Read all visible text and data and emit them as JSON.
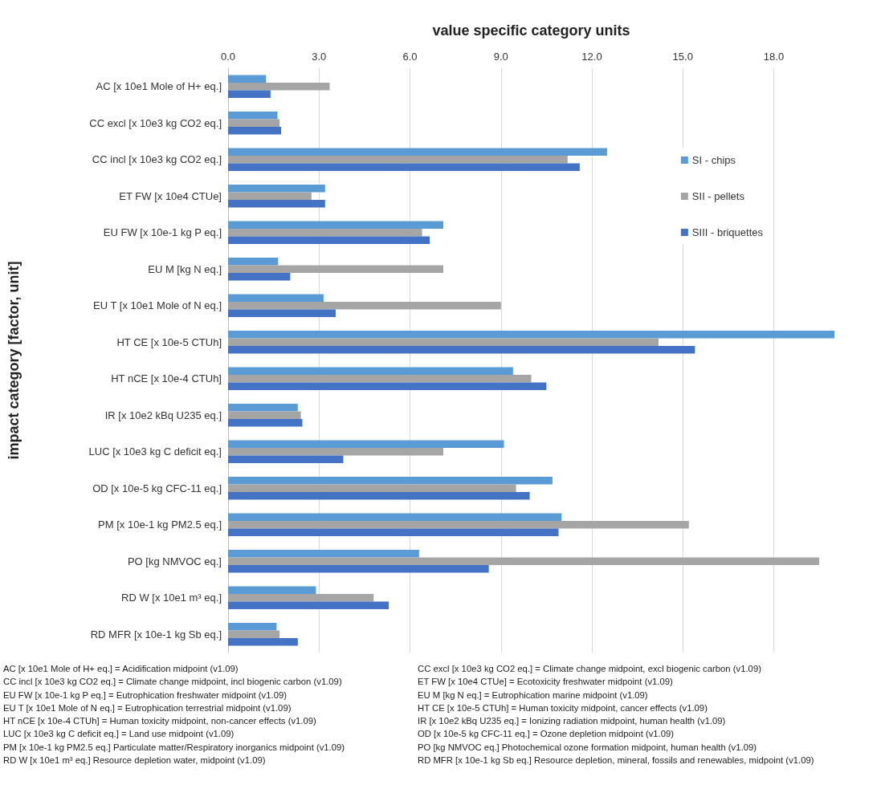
{
  "chart_data": {
    "type": "bar",
    "orientation": "horizontal",
    "xlabel": "value specific category units",
    "ylabel": "impact category [factor, unit]",
    "categories": [
      "AC [x 10e1 Mole of H+ eq.]",
      "CC excl [x 10e3 kg CO2 eq.]",
      "CC incl [x 10e3 kg CO2 eq.]",
      "ET FW [x 10e4 CTUe]",
      "EU FW [x 10e-1 kg P eq.]",
      "EU M [kg N eq.]",
      "EU T [x 10e1 Mole of N eq.]",
      "HT CE [x 10e-5 CTUh]",
      "HT nCE [x 10e-4 CTUh]",
      "IR [x 10e2 kBq U235 eq.]",
      "LUC [x 10e3 kg C deficit eq.]",
      "OD [x 10e-5 kg CFC-11 eq.]",
      "PM [x 10e-1 kg PM2.5 eq.]",
      "PO [kg NMVOC eq.]",
      "RD W [x 10e1 m³ eq.]",
      "RD MFR [x 10e-1 kg Sb eq.]"
    ],
    "series": [
      {
        "name": "SI - chips",
        "color": "#5b9bd5",
        "values": [
          1.25,
          1.63,
          12.5,
          3.2,
          7.1,
          1.65,
          3.15,
          20.0,
          9.4,
          2.3,
          9.1,
          10.7,
          11.0,
          6.3,
          2.9,
          1.6
        ]
      },
      {
        "name": "SII - pellets",
        "color": "#a5a5a5",
        "values": [
          3.35,
          1.7,
          11.2,
          2.75,
          6.4,
          7.1,
          9.0,
          14.2,
          10.0,
          2.4,
          7.1,
          9.5,
          15.2,
          19.5,
          4.8,
          1.7
        ]
      },
      {
        "name": "SIII - briquettes",
        "color": "#4472c4",
        "values": [
          1.4,
          1.75,
          11.6,
          3.2,
          6.65,
          2.05,
          3.55,
          15.4,
          10.5,
          2.45,
          3.8,
          9.95,
          10.9,
          8.6,
          5.3,
          2.3
        ]
      }
    ],
    "xlim": [
      0,
      20
    ],
    "xticks": [
      {
        "value": 0,
        "label": "0.0"
      },
      {
        "value": 3,
        "label": "3.0"
      },
      {
        "value": 6,
        "label": "6.0"
      },
      {
        "value": 9,
        "label": "9.0"
      },
      {
        "value": 12,
        "label": "12.0"
      },
      {
        "value": 15,
        "label": "15.0"
      },
      {
        "value": 18,
        "label": "18.0"
      }
    ],
    "grid": "x",
    "legend": "right",
    "annotations": [
      "AC [x 10e1 Mole of H+ eq.] = Acidification midpoint (v1.09)",
      "CC excl [x 10e3 kg CO2 eq.] = Climate change midpoint, excl biogenic carbon (v1.09)",
      "CC incl [x 10e3 kg CO2 eq.] = Climate change midpoint, incl biogenic carbon (v1.09)",
      "ET FW [x 10e4 CTUe] = Ecotoxicity freshwater  midpoint (v1.09)",
      "EU FW [x 10e-1 kg P eq.] = Eutrophication freshwater midpoint (v1.09)",
      "EU M [kg N eq.]  = Eutrophication marine midpoint (v1.09)",
      "EU T [x 10e1 Mole of N eq.] = Eutrophication terrestrial midpoint (v1.09)",
      "HT CE [x 10e-5 CTUh] = Human toxicity midpoint, cancer effects (v1.09)",
      "HT nCE [x 10e-4 CTUh] = Human toxicity midpoint, non-cancer effects (v1.09)",
      "IR [x 10e2 kBq U235 eq.] = Ionizing radiation midpoint, human health (v1.09)",
      "LUC [x 10e3 kg C deficit eq.] = Land use midpoint (v1.09)",
      "OD [x 10e-5 kg CFC-11 eq.] = Ozone depletion midpoint (v1.09)",
      "PM [x 10e-1 kg PM2.5 eq.] Particulate matter/Respiratory inorganics midpoint (v1.09)",
      "PO [kg NMVOC eq.] Photochemical ozone formation midpoint, human health (v1.09)",
      "RD W [x 10e1 m³ eq.] Resource depletion water, midpoint (v1.09)",
      "RD MFR [x 10e-1 kg Sb eq.] Resource depletion, mineral, fossils and renewables, midpoint (v1.09)"
    ]
  }
}
